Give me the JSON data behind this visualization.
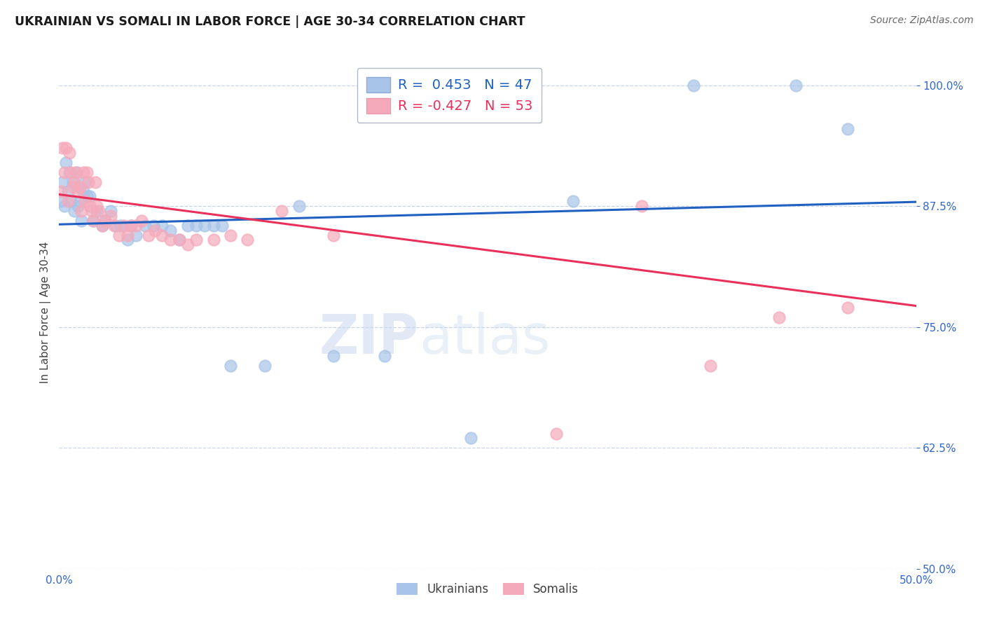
{
  "title": "UKRAINIAN VS SOMALI IN LABOR FORCE | AGE 30-34 CORRELATION CHART",
  "source": "Source: ZipAtlas.com",
  "ylabel": "In Labor Force | Age 30-34",
  "xlim": [
    0.0,
    0.5
  ],
  "ylim": [
    0.5,
    1.03
  ],
  "xticks": [
    0.0,
    0.1,
    0.2,
    0.3,
    0.4,
    0.5
  ],
  "yticks": [
    0.5,
    0.625,
    0.75,
    0.875,
    1.0
  ],
  "xticklabels": [
    "0.0%",
    "",
    "",
    "",
    "",
    "50.0%"
  ],
  "yticklabels": [
    "50.0%",
    "62.5%",
    "75.0%",
    "87.5%",
    "100.0%"
  ],
  "ukraine_R": "0.453",
  "ukraine_N": "47",
  "somali_R": "-0.427",
  "somali_N": "53",
  "blue_color": "#a8c4e8",
  "pink_color": "#f5aabb",
  "blue_line_color": "#2060c0",
  "pink_line_color": "#e8305a",
  "ukraine_x": [
    0.001,
    0.002,
    0.003,
    0.004,
    0.005,
    0.006,
    0.007,
    0.008,
    0.009,
    0.01,
    0.011,
    0.012,
    0.013,
    0.014,
    0.015,
    0.016,
    0.018,
    0.02,
    0.022,
    0.025,
    0.027,
    0.03,
    0.033,
    0.036,
    0.04,
    0.042,
    0.045,
    0.05,
    0.055,
    0.06,
    0.065,
    0.07,
    0.075,
    0.08,
    0.085,
    0.09,
    0.095,
    0.1,
    0.12,
    0.14,
    0.16,
    0.19,
    0.24,
    0.3,
    0.37,
    0.43,
    0.46
  ],
  "ukraine_y": [
    0.88,
    0.9,
    0.875,
    0.92,
    0.89,
    0.91,
    0.88,
    0.9,
    0.87,
    0.91,
    0.875,
    0.88,
    0.86,
    0.89,
    0.9,
    0.885,
    0.885,
    0.86,
    0.87,
    0.855,
    0.86,
    0.87,
    0.855,
    0.855,
    0.84,
    0.855,
    0.845,
    0.855,
    0.855,
    0.855,
    0.85,
    0.84,
    0.855,
    0.855,
    0.855,
    0.855,
    0.855,
    0.71,
    0.71,
    0.875,
    0.72,
    0.72,
    0.635,
    0.88,
    1.0,
    1.0,
    0.955
  ],
  "somali_x": [
    0.001,
    0.002,
    0.003,
    0.004,
    0.005,
    0.006,
    0.007,
    0.008,
    0.009,
    0.01,
    0.011,
    0.012,
    0.013,
    0.014,
    0.015,
    0.016,
    0.017,
    0.018,
    0.019,
    0.02,
    0.021,
    0.022,
    0.023,
    0.025,
    0.027,
    0.03,
    0.032,
    0.035,
    0.038,
    0.04,
    0.042,
    0.045,
    0.048,
    0.052,
    0.056,
    0.06,
    0.065,
    0.07,
    0.075,
    0.08,
    0.09,
    0.1,
    0.11,
    0.13,
    0.16,
    0.19,
    0.22,
    0.25,
    0.29,
    0.34,
    0.38,
    0.42,
    0.46
  ],
  "somali_y": [
    0.89,
    0.935,
    0.91,
    0.935,
    0.88,
    0.93,
    0.91,
    0.895,
    0.9,
    0.91,
    0.89,
    0.895,
    0.87,
    0.91,
    0.88,
    0.91,
    0.9,
    0.875,
    0.87,
    0.86,
    0.9,
    0.875,
    0.87,
    0.855,
    0.86,
    0.865,
    0.855,
    0.845,
    0.855,
    0.845,
    0.855,
    0.855,
    0.86,
    0.845,
    0.85,
    0.845,
    0.84,
    0.84,
    0.835,
    0.84,
    0.84,
    0.845,
    0.84,
    0.87,
    0.845,
    1.0,
    1.0,
    1.0,
    0.64,
    0.875,
    0.71,
    0.76,
    0.77
  ]
}
